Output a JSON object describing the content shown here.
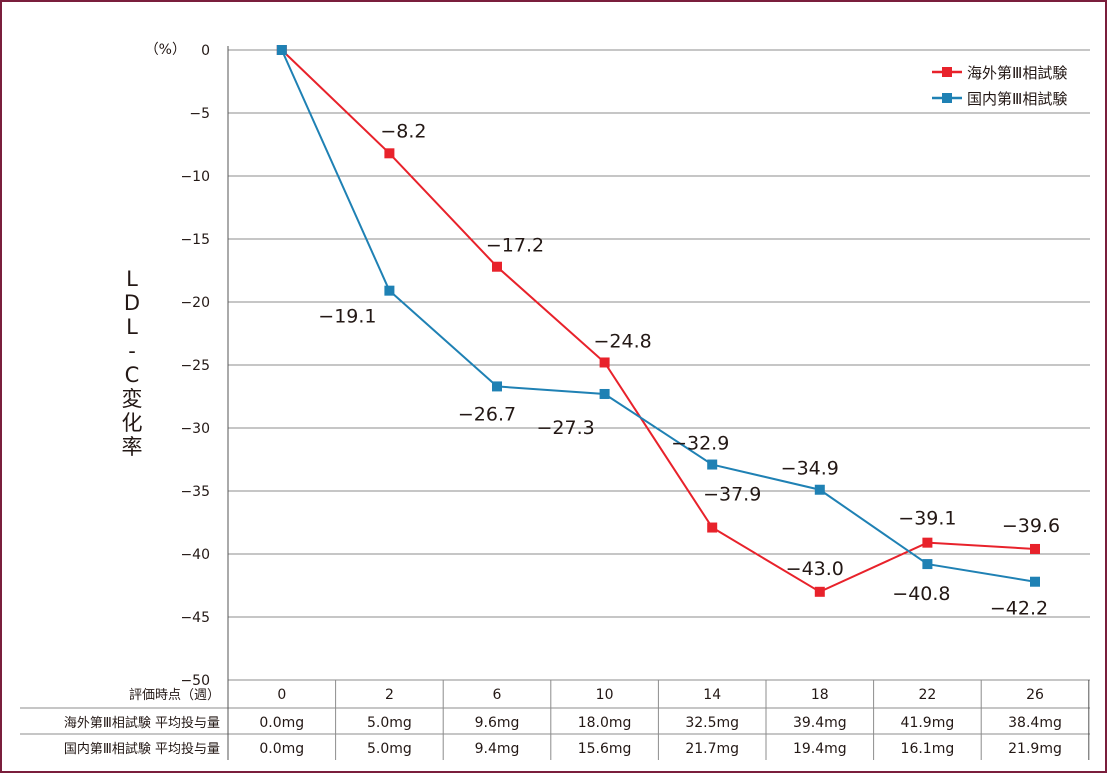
{
  "chart_data": {
    "type": "line",
    "unit_label": "（%）",
    "ylabel": "LDL-C変化率",
    "ylim": [
      -50,
      0
    ],
    "yticks": [
      0,
      -5,
      -10,
      -15,
      -20,
      -25,
      -30,
      -35,
      -40,
      -45,
      -50
    ],
    "ytick_labels": [
      "0",
      "−5",
      "−10",
      "−15",
      "−20",
      "−25",
      "−30",
      "−35",
      "−40",
      "−45",
      "−50"
    ],
    "x": [
      0,
      2,
      6,
      10,
      14,
      18,
      22,
      26
    ],
    "grid": true,
    "legend_position": "top-right",
    "series": [
      {
        "name": "海外第Ⅲ相試験",
        "color": "#e8222b",
        "marker": "square",
        "values": [
          0,
          -8.2,
          -17.2,
          -24.8,
          -37.9,
          -43.0,
          -39.1,
          -39.6
        ],
        "labels": [
          "",
          "−8.2",
          "−17.2",
          "−24.8",
          "−37.9",
          "−43.0",
          "−39.1",
          "−39.6"
        ]
      },
      {
        "name": "国内第Ⅲ相試験",
        "color": "#1f81b4",
        "marker": "square",
        "values": [
          0,
          -19.1,
          -26.7,
          -27.3,
          -32.9,
          -34.9,
          -40.8,
          -42.2
        ],
        "labels": [
          "",
          "−19.1",
          "−26.7",
          "−27.3",
          "−32.9",
          "−34.9",
          "−40.8",
          "−42.2"
        ]
      }
    ],
    "table": {
      "rows": [
        {
          "header": "評価時点（週）",
          "values": [
            "0",
            "2",
            "6",
            "10",
            "14",
            "18",
            "22",
            "26"
          ]
        },
        {
          "header": "海外第Ⅲ相試験 平均投与量",
          "values": [
            "0.0mg",
            "5.0mg",
            "9.6mg",
            "18.0mg",
            "32.5mg",
            "39.4mg",
            "41.9mg",
            "38.4mg"
          ]
        },
        {
          "header": "国内第Ⅲ相試験 平均投与量",
          "values": [
            "0.0mg",
            "5.0mg",
            "9.4mg",
            "15.6mg",
            "21.7mg",
            "19.4mg",
            "16.1mg",
            "21.9mg"
          ]
        }
      ]
    }
  }
}
